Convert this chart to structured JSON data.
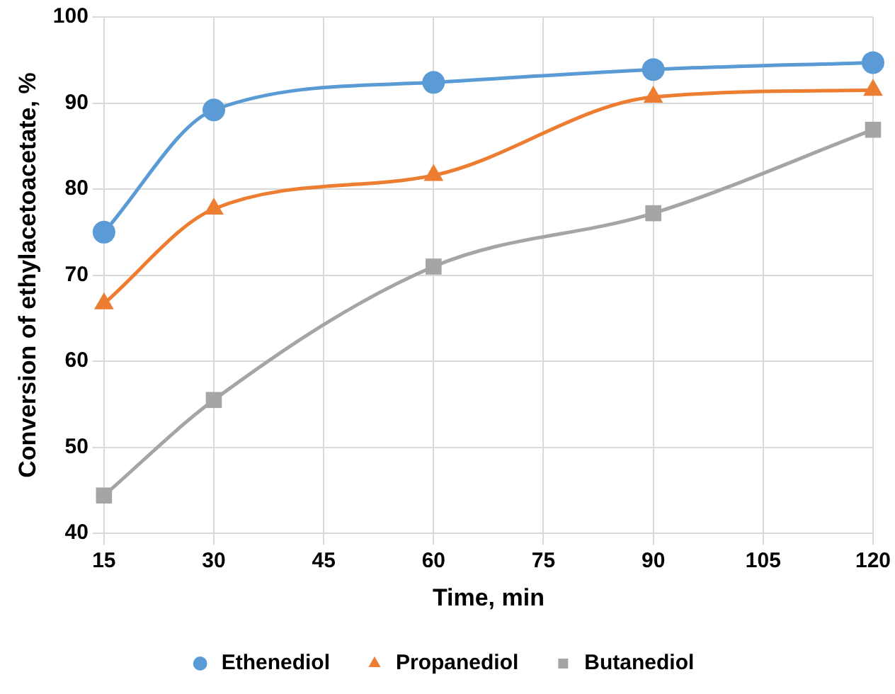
{
  "chart_data": {
    "type": "line",
    "xlabel": "Time, min",
    "ylabel": "Conversion of ethylacetoacetate, %",
    "x": [
      15,
      30,
      60,
      90,
      120
    ],
    "series": [
      {
        "name": "Ethenediol",
        "color": "#5b9bd5",
        "marker": "circle",
        "values": [
          75.0,
          89.2,
          92.4,
          93.9,
          94.7
        ]
      },
      {
        "name": "Propanediol",
        "color": "#ed7d31",
        "marker": "triangle",
        "values": [
          66.7,
          77.7,
          81.6,
          90.7,
          91.5
        ]
      },
      {
        "name": "Butanediol",
        "color": "#a5a5a5",
        "marker": "square",
        "values": [
          44.4,
          55.5,
          71.0,
          77.2,
          86.9
        ]
      }
    ],
    "xlim": [
      15,
      120
    ],
    "xticks": [
      15,
      30,
      45,
      60,
      75,
      90,
      105,
      120
    ],
    "ylim": [
      40,
      100
    ],
    "yticks": [
      40,
      50,
      60,
      70,
      80,
      90,
      100
    ],
    "grid": true,
    "legend": "bottom",
    "line_style": "solid"
  }
}
